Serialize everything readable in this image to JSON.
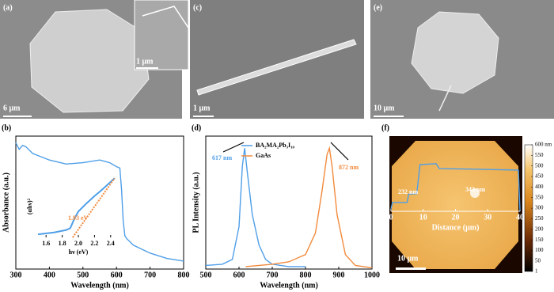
{
  "panels": {
    "a": {
      "label": "(a)",
      "scale": "6 μm",
      "inset_scale": "1 μm"
    },
    "c": {
      "label": "(c)",
      "scale": "1 μm"
    },
    "e": {
      "label": "(e)",
      "scale": "10 μm"
    },
    "f": {
      "label": "(f)",
      "scale": "10 μm",
      "colorbar": {
        "lim": [
          1,
          600
        ],
        "ticks": [
          {
            "value": 600,
            "label": "600 nm"
          },
          550,
          500,
          450,
          400,
          350,
          300,
          250,
          200,
          150,
          100,
          50,
          1
        ]
      }
    }
  },
  "chart_data": [
    {
      "type": "line",
      "panel": "(b)",
      "xlabel": "Wavelength (nm)",
      "ylabel": "Absorbance (a.u.)",
      "xlim": [
        300,
        800
      ],
      "ylim": [
        0,
        1
      ],
      "xticks": [
        300,
        400,
        500,
        600,
        700,
        800
      ],
      "series": [
        {
          "color": "#4f9fe8",
          "x": [
            300,
            310,
            320,
            330,
            350,
            400,
            450,
            500,
            550,
            580,
            600,
            610,
            615,
            620,
            625,
            630,
            650,
            700,
            750,
            800
          ],
          "values": [
            0.95,
            0.9,
            0.93,
            0.92,
            0.87,
            0.82,
            0.79,
            0.8,
            0.82,
            0.8,
            0.77,
            0.76,
            0.6,
            0.36,
            0.25,
            0.23,
            0.18,
            0.12,
            0.08,
            0.06
          ]
        }
      ],
      "inset": {
        "xlabel": "hν (eV)",
        "ylabel": "(αhν)²",
        "annotation": "1.93 eV",
        "xlim": [
          1.5,
          2.5
        ],
        "ylim": [
          0,
          1
        ],
        "xticks": [
          1.6,
          1.8,
          {
            "value": 2,
            "label": "2.0"
          },
          2.2,
          2.4
        ],
        "series": [
          {
            "color": "#4f9fe8",
            "x": [
              1.5,
              1.7,
              1.85,
              1.9,
              1.95,
              2.0,
              2.1,
              2.2,
              2.3,
              2.4,
              2.45
            ],
            "values": [
              0.05,
              0.08,
              0.12,
              0.15,
              0.3,
              0.42,
              0.55,
              0.67,
              0.78,
              0.9,
              0.96
            ]
          },
          {
            "color": "#f28a3d",
            "x": [
              1.93,
              2.45
            ],
            "values": [
              0.0,
              0.96
            ]
          }
        ]
      }
    },
    {
      "type": "line",
      "panel": "(d)",
      "xlabel": "Wavelength (nm)",
      "ylabel": "PL Intensity (a.u.)",
      "xlim": [
        500,
        1000
      ],
      "ylim": [
        0,
        1.1
      ],
      "xticks": [
        500,
        600,
        700,
        800,
        900,
        1000
      ],
      "annotations": [
        "617 nm",
        "872 nm"
      ],
      "series": [
        {
          "name": "BA₂MA₂Pb₃I₁₀",
          "color": "#4f9fe8",
          "x": [
            500,
            550,
            580,
            600,
            610,
            617,
            625,
            640,
            660,
            680,
            700,
            750,
            800
          ],
          "values": [
            0.03,
            0.04,
            0.08,
            0.35,
            0.85,
            1.0,
            0.8,
            0.45,
            0.2,
            0.08,
            0.04,
            0.02,
            0.02
          ]
        },
        {
          "name": "GaAs",
          "color": "#f28a3d",
          "x": [
            620,
            700,
            750,
            800,
            830,
            850,
            865,
            872,
            880,
            895,
            920,
            950,
            1000
          ],
          "values": [
            0.02,
            0.04,
            0.06,
            0.12,
            0.3,
            0.65,
            0.95,
            1.0,
            0.85,
            0.45,
            0.12,
            0.03,
            0.01
          ]
        }
      ]
    },
    {
      "type": "line",
      "xlabel": "Distance (μm)",
      "xlim": [
        0,
        40
      ],
      "ylim": [
        0,
        1
      ],
      "xticks": [
        0,
        10,
        20,
        30,
        40
      ],
      "annotations": [
        "232 nm",
        "343 nm"
      ],
      "series": [
        {
          "color": "#4f9fe8",
          "x": [
            0,
            0.5,
            5,
            5.5,
            8,
            9,
            14,
            15,
            25,
            39.5,
            40
          ],
          "values": [
            0.05,
            0.18,
            0.18,
            0.35,
            0.36,
            0.95,
            0.97,
            0.87,
            0.86,
            0.84,
            0.02
          ]
        }
      ]
    }
  ]
}
